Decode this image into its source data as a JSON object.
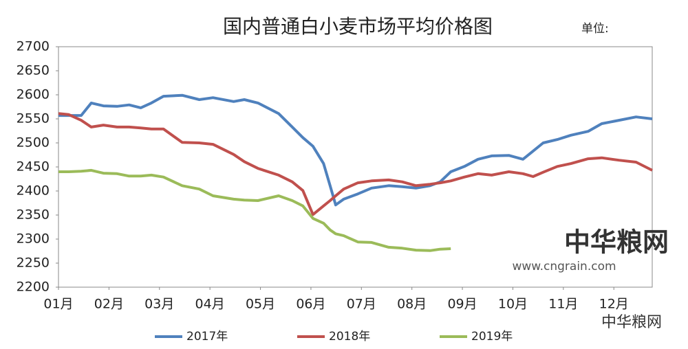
{
  "chart_data": {
    "type": "line",
    "title": "国内普通白小麦市场平均价格图",
    "unit_label": "单位:",
    "annotations": [
      "中华粮网",
      "www.cngrain.com",
      "中华粮网"
    ],
    "x": [
      0,
      0.2,
      0.45,
      0.65,
      0.89,
      1.16,
      1.4,
      1.63,
      1.84,
      2.08,
      2.45,
      2.79,
      3.06,
      3.47,
      3.68,
      3.95,
      4.36,
      4.63,
      4.84,
      5.04,
      5.25,
      5.38,
      5.49,
      5.65,
      5.93,
      6.2,
      6.54,
      6.81,
      7.08,
      7.36,
      7.56,
      7.77,
      8.04,
      8.31,
      8.58,
      8.92,
      9.2,
      9.4,
      9.6,
      9.88,
      10.15,
      10.49,
      10.76,
      11.1,
      11.44,
      11.76
    ],
    "series": [
      {
        "name": "2017年",
        "color": "#4f81bd",
        "values": [
          2557,
          2557,
          2557,
          2583,
          2577,
          2576,
          2579,
          2573,
          2583,
          2597,
          2599,
          2590,
          2594,
          2586,
          2590,
          2583,
          2561,
          2533,
          2511,
          2493,
          2457,
          2411,
          2371,
          2383,
          2394,
          2406,
          2411,
          2409,
          2406,
          2411,
          2419,
          2440,
          2451,
          2466,
          2473,
          2474,
          2466,
          2483,
          2500,
          2507,
          2516,
          2524,
          2540,
          2547,
          2554,
          2550
        ]
      },
      {
        "name": "2018年",
        "color": "#c0504d",
        "values": [
          2561,
          2559,
          2547,
          2533,
          2537,
          2533,
          2533,
          2531,
          2529,
          2529,
          2501,
          2500,
          2497,
          2476,
          2461,
          2447,
          2433,
          2419,
          2401,
          2351,
          2369,
          2380,
          2390,
          2404,
          2417,
          2421,
          2423,
          2419,
          2411,
          2414,
          2417,
          2421,
          2429,
          2436,
          2433,
          2440,
          2436,
          2430,
          2439,
          2451,
          2457,
          2467,
          2469,
          2464,
          2460,
          2443
        ]
      },
      {
        "name": "2019年",
        "color": "#9bbb59",
        "values": [
          2440,
          2440,
          2441,
          2443,
          2437,
          2436,
          2431,
          2431,
          2433,
          2429,
          2411,
          2404,
          2390,
          2383,
          2381,
          2380,
          2390,
          2380,
          2369,
          2343,
          2333,
          2319,
          2311,
          2307,
          2294,
          2293,
          2283,
          2281,
          2277,
          2276,
          2279,
          2280,
          null,
          null,
          null,
          null,
          null,
          null,
          null,
          null,
          null,
          null,
          null,
          null,
          null,
          null
        ]
      }
    ],
    "xlim": [
      0,
      11.76
    ],
    "xticks": [
      {
        "value": 0,
        "label": "01月"
      },
      {
        "value": 1,
        "label": "02月"
      },
      {
        "value": 2,
        "label": "03月"
      },
      {
        "value": 3,
        "label": "04月"
      },
      {
        "value": 4,
        "label": "05月"
      },
      {
        "value": 5,
        "label": "06月"
      },
      {
        "value": 6,
        "label": "07月"
      },
      {
        "value": 7,
        "label": "08月"
      },
      {
        "value": 8,
        "label": "09月"
      },
      {
        "value": 9,
        "label": "10月"
      },
      {
        "value": 10,
        "label": "11月"
      },
      {
        "value": 11,
        "label": "12月"
      }
    ],
    "ylim": [
      2200,
      2700
    ],
    "yticks": [
      2200,
      2250,
      2300,
      2350,
      2400,
      2450,
      2500,
      2550,
      2600,
      2650,
      2700
    ],
    "legend": "bottom"
  }
}
